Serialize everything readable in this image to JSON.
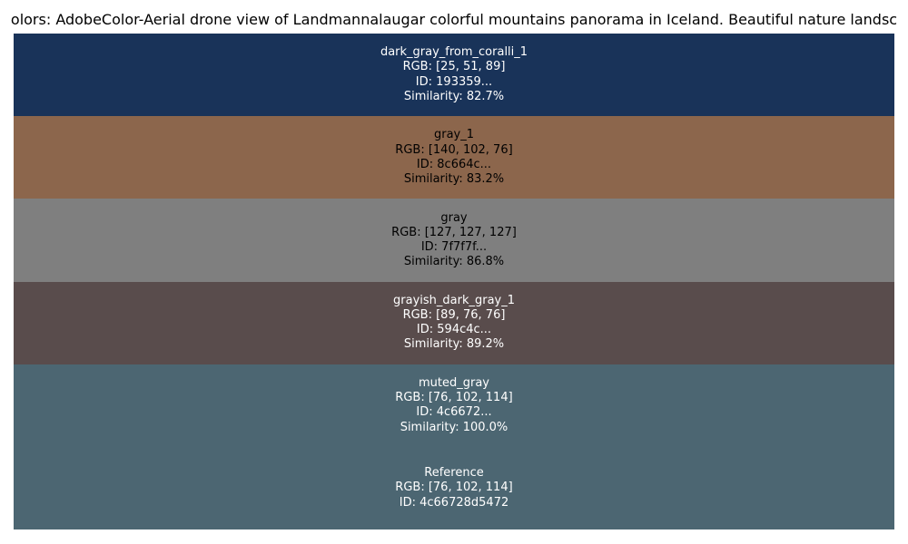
{
  "title": "olors: AdobeColor-Aerial drone view of Landmannalaugar colorful mountains panorama in Iceland. Beautiful nature landsc",
  "swatches": [
    {
      "color": "#193359",
      "lines": [
        "dark_gray_from_coralli_1",
        "RGB: [25, 51, 89]",
        "ID: 193359...",
        "Similarity: 82.7%"
      ]
    },
    {
      "color": "#8c664c",
      "lines": [
        "gray_1",
        "RGB: [140, 102, 76]",
        "ID: 8c664c...",
        "Similarity: 83.2%"
      ]
    },
    {
      "color": "#7f7f7f",
      "lines": [
        "gray",
        "RGB: [127, 127, 127]",
        "ID: 7f7f7f...",
        "Similarity: 86.8%"
      ]
    },
    {
      "color": "#594c4c",
      "lines": [
        "grayish_dark_gray_1",
        "RGB: [89, 76, 76]",
        "ID: 594c4c...",
        "Similarity: 89.2%"
      ]
    },
    {
      "color": "#4c6672",
      "lines": [
        "muted_gray",
        "RGB: [76, 102, 114]",
        "ID: 4c6672...",
        "Similarity: 100.0%"
      ]
    }
  ],
  "reference": {
    "color": "#4c6672",
    "lines": [
      "Reference",
      "RGB: [76, 102, 114]",
      "ID: 4c66728d5472"
    ]
  }
}
